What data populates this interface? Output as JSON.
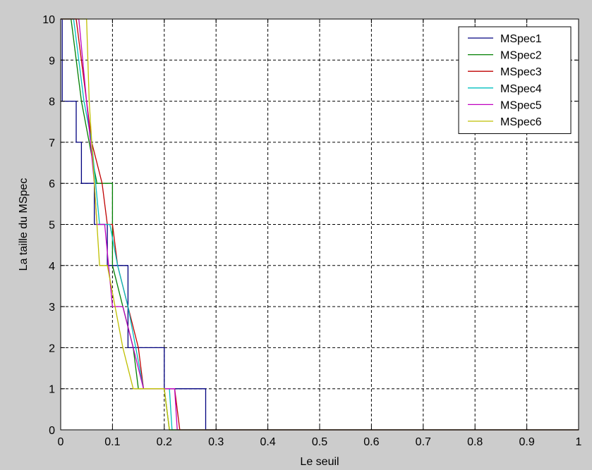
{
  "chart_data": {
    "type": "line",
    "title": "",
    "xlabel": "Le seuil",
    "ylabel": "La taille du MSpec",
    "xlim": [
      0,
      1
    ],
    "ylim": [
      0,
      10
    ],
    "xticks": [
      0,
      0.1,
      0.2,
      0.3,
      0.4,
      0.5,
      0.6,
      0.7,
      0.8,
      0.9,
      1
    ],
    "xtick_labels": [
      "0",
      "0.1",
      "0.2",
      "0.3",
      "0.4",
      "0.5",
      "0.6",
      "0.7",
      "0.8",
      "0.9",
      "1"
    ],
    "yticks": [
      0,
      1,
      2,
      3,
      4,
      5,
      6,
      7,
      8,
      9,
      10
    ],
    "ytick_labels": [
      "0",
      "1",
      "2",
      "3",
      "4",
      "5",
      "6",
      "7",
      "8",
      "9",
      "10"
    ],
    "grid": true,
    "grid_style": "dashed",
    "legend_position": "top-right",
    "step": true,
    "series": [
      {
        "name": "MSpec1",
        "color": "#00007f",
        "x": [
          0,
          0.003,
          0.003,
          0.03,
          0.03,
          0.04,
          0.04,
          0.065,
          0.065,
          0.09,
          0.09,
          0.13,
          0.13,
          0.2,
          0.2,
          0.28,
          0.28,
          1
        ],
        "y": [
          10,
          10,
          8,
          8,
          7,
          7,
          6,
          6,
          5,
          5,
          4,
          4,
          2,
          2,
          1,
          1,
          0,
          0
        ]
      },
      {
        "name": "MSpec2",
        "color": "#007f00",
        "x": [
          0,
          0.02,
          0.04,
          0.04,
          0.07,
          0.1,
          0.1,
          0.14,
          0.15,
          0.15,
          0.2,
          0.21,
          1
        ],
        "y": [
          10,
          10,
          8,
          8,
          6,
          6,
          4,
          2,
          1,
          1,
          1,
          0,
          0
        ]
      },
      {
        "name": "MSpec3",
        "color": "#bf0000",
        "x": [
          0,
          0.03,
          0.05,
          0.06,
          0.08,
          0.09,
          0.1,
          0.11,
          0.13,
          0.15,
          0.16,
          0.22,
          0.23,
          1
        ],
        "y": [
          10,
          10,
          8,
          7,
          6,
          5,
          5,
          4,
          3,
          2,
          1,
          1,
          0,
          0
        ]
      },
      {
        "name": "MSpec4",
        "color": "#00bfbf",
        "x": [
          0,
          0.025,
          0.045,
          0.06,
          0.075,
          0.095,
          0.11,
          0.13,
          0.145,
          0.16,
          0.21,
          0.215,
          1
        ],
        "y": [
          10,
          10,
          8,
          7,
          5,
          5,
          4,
          3,
          2,
          1,
          1,
          0,
          0
        ]
      },
      {
        "name": "MSpec5",
        "color": "#bf00bf",
        "x": [
          0,
          0.035,
          0.05,
          0.065,
          0.07,
          0.085,
          0.1,
          0.12,
          0.14,
          0.16,
          0.22,
          0.225,
          1
        ],
        "y": [
          10,
          10,
          8,
          6,
          5,
          5,
          3,
          3,
          2,
          1,
          1,
          0,
          0
        ]
      },
      {
        "name": "MSpec6",
        "color": "#bfbf00",
        "x": [
          0,
          0.05,
          0.055,
          0.065,
          0.075,
          0.09,
          0.105,
          0.12,
          0.14,
          0.2,
          0.21,
          1
        ],
        "y": [
          10,
          10,
          8,
          6,
          4,
          4,
          3,
          2,
          1,
          1,
          0,
          0
        ]
      }
    ]
  }
}
